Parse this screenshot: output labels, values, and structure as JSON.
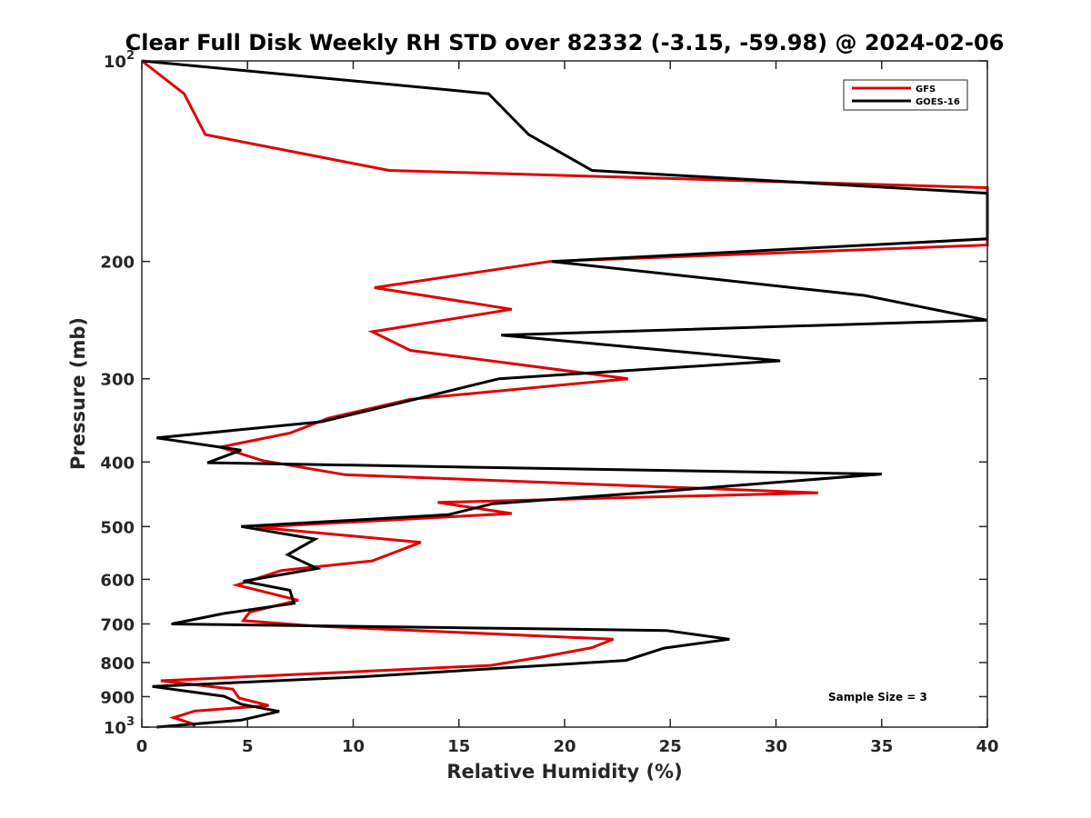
{
  "chart_data": {
    "type": "line",
    "title": "Clear Full Disk Weekly RH STD over 82332 (-3.15, -59.98) @ 2024-02-06",
    "xlabel": "Relative Humidity (%)",
    "ylabel": "Pressure (mb)",
    "xlim": [
      0,
      40
    ],
    "ylim": [
      100,
      1000
    ],
    "y_scale": "log",
    "y_reversed": true,
    "x_ticks": [
      "0",
      "5",
      "10",
      "15",
      "20",
      "25",
      "30",
      "35",
      "40"
    ],
    "y_ticks": [
      {
        "value": 100,
        "base": "10",
        "exp": "2"
      },
      {
        "value": 200,
        "label": "200"
      },
      {
        "value": 300,
        "label": "300"
      },
      {
        "value": 400,
        "label": "400"
      },
      {
        "value": 500,
        "label": "500"
      },
      {
        "value": 600,
        "label": "600"
      },
      {
        "value": 700,
        "label": "700"
      },
      {
        "value": 800,
        "label": "800"
      },
      {
        "value": 900,
        "label": "900"
      },
      {
        "value": 1000,
        "base": "10",
        "exp": "3"
      }
    ],
    "legend_position": "top-right",
    "grid": false,
    "annotation": "Sample Size = 3",
    "series": [
      {
        "name": "GFS",
        "color": "#e00000",
        "x": [
          0.0,
          2.0,
          3.0,
          11.7,
          40.0,
          40.0,
          19.3,
          11.0,
          17.5,
          10.9,
          12.7,
          23.0,
          12.7,
          8.8,
          7.0,
          3.7,
          5.7,
          9.6,
          32.0,
          14.0,
          17.5,
          5.4,
          13.2,
          10.9,
          6.6,
          4.5,
          7.4,
          5.1,
          4.8,
          8.1,
          22.3,
          21.3,
          19.1,
          16.5,
          0.9,
          4.3,
          4.6,
          6.0,
          2.5,
          1.5,
          2.4,
          2.5
        ],
        "y": [
          100,
          112,
          129,
          146,
          155,
          189,
          200,
          219,
          236,
          255,
          272,
          300,
          322,
          344,
          362,
          380,
          398,
          418,
          445,
          460,
          478,
          501,
          528,
          563,
          582,
          612,
          645,
          672,
          692,
          705,
          738,
          760,
          783,
          808,
          852,
          877,
          904,
          928,
          946,
          968,
          988,
          1000
        ]
      },
      {
        "name": "GOES-16",
        "color": "#000000",
        "x": [
          0.0,
          16.4,
          18.3,
          21.3,
          40.0,
          40.0,
          19.4,
          34.2,
          40.0,
          17.0,
          30.2,
          16.9,
          12.6,
          8.5,
          0.7,
          4.7,
          3.1,
          35.0,
          23.7,
          16.6,
          14.5,
          4.7,
          8.2,
          6.9,
          8.3,
          4.8,
          7.0,
          7.2,
          3.9,
          1.4,
          24.8,
          27.8,
          24.7,
          22.9,
          10.5,
          0.5,
          3.9,
          4.7,
          6.5,
          4.7,
          0.7
        ],
        "y": [
          100,
          112,
          129,
          146,
          158,
          185,
          200,
          225,
          245,
          258,
          282,
          300,
          324,
          348,
          368,
          384,
          401,
          417,
          445,
          462,
          480,
          500,
          522,
          551,
          578,
          604,
          623,
          652,
          675,
          700,
          716,
          738,
          761,
          794,
          840,
          869,
          899,
          924,
          947,
          976,
          1000
        ]
      }
    ]
  }
}
